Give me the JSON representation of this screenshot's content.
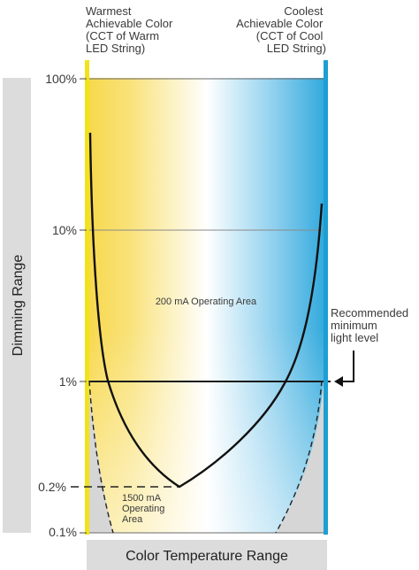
{
  "headers": {
    "warm": [
      "Warmest",
      "Achievable Color",
      "(CCT of Warm",
      "LED String)"
    ],
    "cool": [
      "Coolest",
      "Achievable Color",
      "(CCT of Cool",
      "LED String)"
    ]
  },
  "y_ticks": {
    "t100": "100%",
    "t10": "10%",
    "t1": "1%",
    "t02": "0.2%",
    "t01": "0.1%"
  },
  "axis": {
    "y_title": "Dimming Range",
    "x_title": "Color Temperature Range"
  },
  "areas": {
    "ma200": "200 mA Operating Area",
    "ma1500": [
      "1500 mA",
      "Operating",
      "Area"
    ]
  },
  "recommended": [
    "Recommended",
    "minimum",
    "light level"
  ],
  "colors": {
    "warm_bar": "#f2e21a",
    "cool_bar": "#1c9fd2",
    "gradient_warm": "#f7d84a",
    "gradient_mid": "#ffffff",
    "gradient_cool": "#2ea8dc",
    "axis_band": "#dcdcdc",
    "outside_area": "#d6d6d6"
  }
}
